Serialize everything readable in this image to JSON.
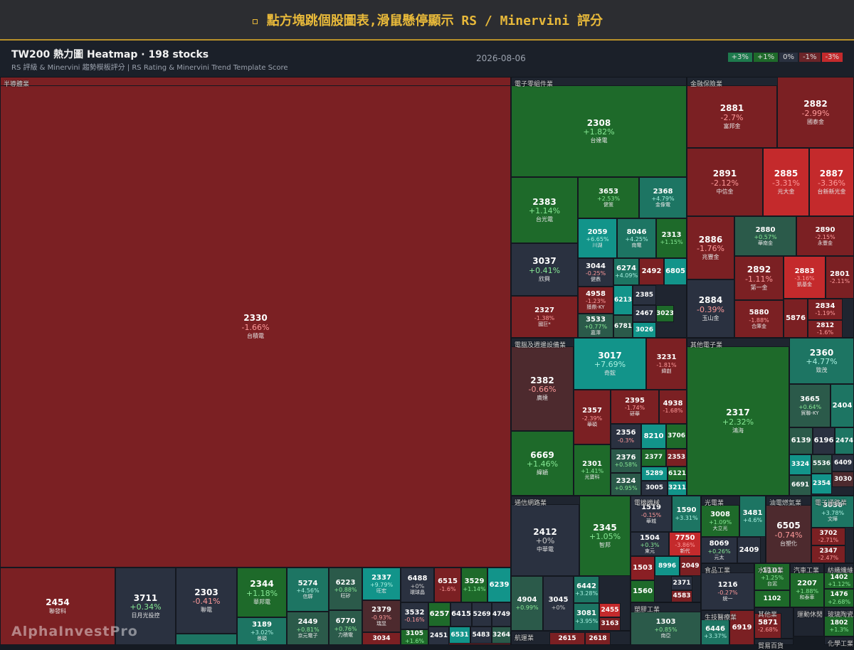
{
  "header": {
    "title": "▫ 點方塊跳個股圖表,滑鼠懸停顯示 RS / Minervini 評分"
  },
  "info": {
    "title": "TW200 熱力圖 Heatmap · 198 stocks",
    "subtitle": "RS 評級 & Minervini 趨勢模板評分 | RS Rating & Minervini Trend Template Score",
    "date": "2026-08-06"
  },
  "legend": [
    {
      "label": "+3%",
      "color": "#1e7a4d"
    },
    {
      "label": "+1%",
      "color": "#1e6a2a"
    },
    {
      "label": "0%",
      "color": "#2a3140"
    },
    {
      "label": "-1%",
      "color": "#6b2428"
    },
    {
      "label": "-3%",
      "color": "#c42a2c"
    }
  ],
  "sectors": [
    {
      "name": "半導體業",
      "stocks": [
        {
          "code": "2330",
          "change": "-1.66%",
          "name": "台積電"
        },
        {
          "code": "2454",
          "name": "聯發科",
          "color": "#7b2023"
        },
        {
          "code": "3711",
          "change": "+0.34%",
          "name": "日月光投控"
        },
        {
          "code": "2303",
          "change": "-0.41%",
          "name": "聯電"
        },
        {
          "code": "2344",
          "change": "+1.18%",
          "name": "華邦電"
        },
        {
          "code": "3189",
          "change": "+3.02%",
          "name": "景碩"
        },
        {
          "code": "5274",
          "change": "+4.56%",
          "name": "信驊"
        },
        {
          "code": "2449",
          "change": "+0.81%",
          "name": "京元電子"
        },
        {
          "code": "6223",
          "change": "+0.88%",
          "name": "旺矽"
        },
        {
          "code": "6770",
          "change": "+0.76%",
          "name": "力積電"
        },
        {
          "code": "2337",
          "change": "+9.79%",
          "name": "旺宏"
        },
        {
          "code": "2379",
          "change": "-0.93%",
          "name": "瑞昱"
        },
        {
          "code": "3034",
          "color": "#7b2023"
        },
        {
          "code": "6488",
          "change": "+0%",
          "name": "環球晶"
        },
        {
          "code": "6515",
          "change": "-1.6%"
        },
        {
          "code": "3529",
          "change": "+1.14%"
        },
        {
          "code": "6239",
          "color": "#12948a"
        },
        {
          "code": "3532",
          "change": "-0.16%"
        },
        {
          "code": "6257",
          "color": "#1e6a2a"
        },
        {
          "code": "6415",
          "color": "#2a3140"
        },
        {
          "code": "5269",
          "color": "#2a3140"
        },
        {
          "code": "4749",
          "color": "#2a3140"
        },
        {
          "code": "3105",
          "change": "+1.6%"
        },
        {
          "code": "2451",
          "color": "#2a3140"
        },
        {
          "code": "6531",
          "color": "#12948a"
        },
        {
          "code": "5483",
          "color": "#2a3140"
        },
        {
          "code": "3264",
          "color": "#2b5a4a"
        }
      ]
    },
    {
      "name": "電子零組件業",
      "stocks": [
        {
          "code": "2308",
          "change": "+1.82%",
          "name": "台達電"
        },
        {
          "code": "2383",
          "change": "+1.14%",
          "name": "台光電"
        },
        {
          "code": "3037",
          "change": "+0.41%",
          "name": "欣興"
        },
        {
          "code": "2327",
          "change": "-1.38%",
          "name": "國巨*"
        },
        {
          "code": "3653",
          "change": "+2.53%",
          "name": "健策"
        },
        {
          "code": "2368",
          "change": "+4.79%",
          "name": "金像電"
        },
        {
          "code": "2059",
          "change": "+6.65%",
          "name": "川湖"
        },
        {
          "code": "8046",
          "change": "+4.25%",
          "name": "南電"
        },
        {
          "code": "2313",
          "change": "+1.15%"
        },
        {
          "code": "3044",
          "change": "-0.25%",
          "name": "健鼎"
        },
        {
          "code": "6274",
          "change": "+4.09%"
        },
        {
          "code": "2492",
          "color": "#7b2023"
        },
        {
          "code": "6805",
          "color": "#12948a"
        },
        {
          "code": "4958",
          "change": "-1.23%",
          "name": "臻鼎-KY"
        },
        {
          "code": "6213",
          "color": "#12948a"
        },
        {
          "code": "2385",
          "color": "#2a3140"
        },
        {
          "code": "3533",
          "change": "+0.77%",
          "name": "嘉澤"
        },
        {
          "code": "2467",
          "color": "#2a3140"
        },
        {
          "code": "3023",
          "color": "#1e6a2a"
        },
        {
          "code": "6781",
          "color": "#2b5a4a"
        },
        {
          "code": "3026",
          "color": "#12948a"
        }
      ]
    },
    {
      "name": "金融保險業",
      "stocks": [
        {
          "code": "2881",
          "change": "-2.7%",
          "name": "富邦金"
        },
        {
          "code": "2882",
          "change": "-2.99%",
          "name": "國泰金"
        },
        {
          "code": "2891",
          "change": "-2.12%",
          "name": "中信金"
        },
        {
          "code": "2885",
          "change": "-3.31%",
          "name": "元大金"
        },
        {
          "code": "2887",
          "change": "-3.36%",
          "name": "台新新光金"
        },
        {
          "code": "2886",
          "change": "-1.76%",
          "name": "兆豐金"
        },
        {
          "code": "2880",
          "change": "+0.57%",
          "name": "華南金"
        },
        {
          "code": "2890",
          "change": "-2.15%",
          "name": "永豐金"
        },
        {
          "code": "2892",
          "change": "-1.11%",
          "name": "第一金"
        },
        {
          "code": "2883",
          "change": "-3.16%",
          "name": "凱基金"
        },
        {
          "code": "2801",
          "change": "-2.11%"
        },
        {
          "code": "2884",
          "change": "-0.39%",
          "name": "玉山金"
        },
        {
          "code": "5880",
          "change": "-1.88%",
          "name": "合庫金"
        },
        {
          "code": "5876",
          "color": "#7b2023"
        },
        {
          "code": "2834",
          "change": "-1.19%"
        },
        {
          "code": "2812",
          "change": "-1.6%"
        }
      ]
    },
    {
      "name": "電腦及週邊設備業",
      "stocks": [
        {
          "code": "2382",
          "change": "-0.66%",
          "name": "廣達"
        },
        {
          "code": "6669",
          "change": "+1.46%",
          "name": "緯穎"
        },
        {
          "code": "3017",
          "change": "+7.69%",
          "name": "奇鋐"
        },
        {
          "code": "3231",
          "change": "-1.81%",
          "name": "緯創"
        },
        {
          "code": "2357",
          "change": "-2.39%",
          "name": "華碩"
        },
        {
          "code": "2395",
          "change": "-1.74%",
          "name": "研華"
        },
        {
          "code": "4938",
          "change": "-1.68%"
        },
        {
          "code": "2356",
          "change": "-0.3%"
        },
        {
          "code": "8210",
          "color": "#12948a"
        },
        {
          "code": "3706",
          "color": "#1e6a2a"
        },
        {
          "code": "2301",
          "change": "+1.41%",
          "name": "光寶科"
        },
        {
          "code": "2376",
          "change": "+0.58%"
        },
        {
          "code": "2377",
          "color": "#1e6a2a"
        },
        {
          "code": "2353",
          "color": "#7b2023"
        },
        {
          "code": "5289",
          "color": "#12948a"
        },
        {
          "code": "6121",
          "color": "#1e6a2a"
        },
        {
          "code": "2324",
          "change": "+0.95%"
        },
        {
          "code": "3005",
          "color": "#2a3140"
        },
        {
          "code": "3211",
          "color": "#12948a"
        }
      ]
    },
    {
      "name": "其他電子業",
      "stocks": [
        {
          "code": "2317",
          "change": "+2.32%",
          "name": "鴻海"
        },
        {
          "code": "2360",
          "change": "+4.77%",
          "name": "致茂"
        },
        {
          "code": "3665",
          "change": "+0.64%",
          "name": "貿聯-KY"
        },
        {
          "code": "2404",
          "color": "#1d7563"
        },
        {
          "code": "6139",
          "color": "#2b5a4a"
        },
        {
          "code": "6196",
          "color": "#2a3140"
        },
        {
          "code": "2474",
          "color": "#1d7563"
        },
        {
          "code": "3324",
          "color": "#12948a"
        },
        {
          "code": "5536",
          "color": "#2b5a4a"
        },
        {
          "code": "6409",
          "color": "#2a3140"
        },
        {
          "code": "6691",
          "color": "#2b5a4a"
        },
        {
          "code": "2354",
          "color": "#12948a"
        },
        {
          "code": "3030",
          "color": "#4d2a2e"
        }
      ]
    },
    {
      "name": "通信網路業",
      "stocks": [
        {
          "code": "2412",
          "change": "+0%",
          "name": "中華電"
        },
        {
          "code": "2345",
          "change": "+1.05%",
          "name": "智邦"
        },
        {
          "code": "4904",
          "change": "+0.99%"
        },
        {
          "code": "3045",
          "change": "+0%"
        },
        {
          "code": "6442",
          "change": "+3.28%"
        },
        {
          "code": "3081",
          "change": "+3.95%"
        },
        {
          "code": "2455",
          "color": "#c42a2c"
        },
        {
          "code": "3163",
          "color": "#7b2023"
        }
      ]
    },
    {
      "name": "航運業",
      "stocks": [
        {
          "code": "2615",
          "color": "#7b2023"
        },
        {
          "code": "2618",
          "color": "#7b2023"
        }
      ]
    },
    {
      "name": "電機機械",
      "stocks": [
        {
          "code": "1519",
          "change": "-0.15%",
          "name": "華城"
        },
        {
          "code": "1590",
          "change": "+3.31%"
        },
        {
          "code": "1504",
          "change": "+0.3%",
          "name": "東元"
        },
        {
          "code": "7750",
          "change": "-3.86%",
          "name": "新代"
        },
        {
          "code": "1503",
          "color": "#8a1f24"
        },
        {
          "code": "8996",
          "color": "#12948a"
        },
        {
          "code": "2049",
          "color": "#7b2023"
        },
        {
          "code": "1560",
          "color": "#1e6a2a"
        },
        {
          "code": "2371",
          "color": "#2a3140"
        },
        {
          "code": "4583",
          "color": "#7b2023"
        }
      ]
    },
    {
      "name": "塑膠工業",
      "stocks": [
        {
          "code": "1303",
          "change": "+0.85%",
          "name": "南亞"
        }
      ]
    },
    {
      "name": "光電業",
      "stocks": [
        {
          "code": "3008",
          "change": "+1.09%",
          "name": "大立光"
        },
        {
          "code": "3481",
          "change": "+4.6%"
        },
        {
          "code": "8069",
          "change": "+0.26%",
          "name": "元太"
        },
        {
          "code": "2409",
          "color": "#2a3140"
        }
      ]
    },
    {
      "name": "油電燃氣業",
      "stocks": [
        {
          "code": "6505",
          "change": "-0.74%",
          "name": "台塑化"
        }
      ]
    },
    {
      "name": "電子通路業",
      "stocks": [
        {
          "code": "3036",
          "change": "+3.78%",
          "name": "文曄"
        },
        {
          "code": "3702",
          "change": "-2.71%"
        },
        {
          "code": "2347",
          "change": "-2.47%"
        }
      ]
    },
    {
      "name": "食品工業",
      "stocks": [
        {
          "code": "1216",
          "change": "-0.27%",
          "name": "統一"
        }
      ]
    },
    {
      "name": "生技醫療業",
      "stocks": [
        {
          "code": "6446",
          "change": "+3.37%"
        },
        {
          "code": "6919",
          "color": "#7b2023"
        }
      ]
    },
    {
      "name": "水泥工業",
      "stocks": [
        {
          "code": "1101",
          "change": "+1.25%",
          "name": "台泥"
        },
        {
          "code": "1102",
          "color": "#1e6a2a"
        }
      ]
    },
    {
      "name": "汽車工業",
      "stocks": [
        {
          "code": "2207",
          "change": "+1.88%",
          "name": "和泰車"
        }
      ]
    },
    {
      "name": "紡織纖維",
      "stocks": [
        {
          "code": "1402",
          "change": "+1.12%"
        },
        {
          "code": "1476",
          "change": "+2.68%"
        }
      ]
    },
    {
      "name": "其他業",
      "stocks": [
        {
          "code": "5871",
          "change": "-2.68%"
        }
      ]
    },
    {
      "name": "貿易百貨",
      "stocks": []
    },
    {
      "name": "運動休閒",
      "stocks": []
    },
    {
      "name": "玻璃陶瓷",
      "stocks": [
        {
          "code": "1802",
          "change": "+1.3%"
        }
      ]
    },
    {
      "name": "化學工業",
      "stocks": []
    }
  ],
  "watermark": "AlphaInvestPro"
}
